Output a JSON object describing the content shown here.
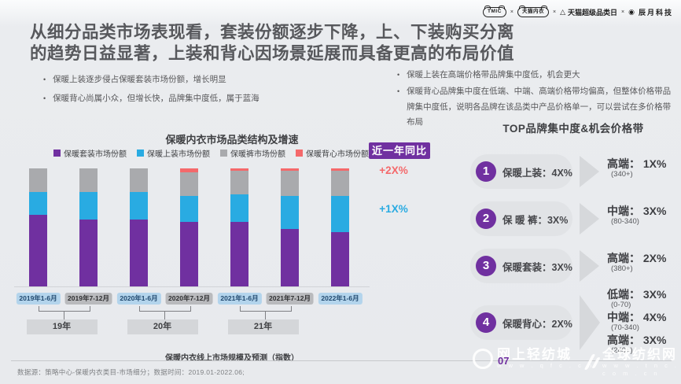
{
  "slide": {
    "title_line1": "从细分品类市场表现看，套装份额逐步下降，上、下装购买分离",
    "title_line2": "的趋势日益显著，上装和背心因场景延展而具备更高的布局价值"
  },
  "header_logos": {
    "items": [
      "TMIC",
      "天猫内衣",
      "天猫超级品类日",
      "辰月科技"
    ],
    "separator": "×",
    "triangle_glyph": "△",
    "circle_glyph": "◉"
  },
  "left_bullets": [
    "保暖上装逐步侵占保暖套装市场份额，增长明显",
    "保暖背心尚属小众，但增长快，品牌集中度低，属于蓝海"
  ],
  "right_bullets": [
    "保暖上装在高端价格带品牌集中度低，机会更大",
    "保暖背心品牌集中度在低端、中端、高端价格带均偏高，但整体价格带品牌集中度低，说明各品牌在该品类中产品价格单一，可以尝试在多价格带布局"
  ],
  "chart_data": {
    "type": "bar",
    "stacked": true,
    "title": "保暖内衣市场品类结构及增速",
    "categories": [
      "2019年1-6月",
      "2019年7-12月",
      "2020年1-6月",
      "2020年7-12月",
      "2021年1-6月",
      "2021年7-12月",
      "2022年1-6月"
    ],
    "series": [
      {
        "name": "保暖套装市场份额",
        "color": "#7030A0",
        "values": [
          61,
          57,
          57,
          55,
          55,
          49,
          46
        ]
      },
      {
        "name": "保暖上装市场份额",
        "color": "#29ABE2",
        "values": [
          19,
          23,
          23,
          22,
          23,
          28,
          31
        ]
      },
      {
        "name": "保暖裤市场份额",
        "color": "#A9AAAD",
        "values": [
          20,
          20,
          20,
          20,
          20,
          21,
          21
        ]
      },
      {
        "name": "保暖背心市场份额",
        "color": "#F4696B",
        "values": [
          0,
          0,
          0,
          3,
          2,
          2,
          2
        ]
      }
    ],
    "badge": "近一年同比",
    "annotations": [
      {
        "text": "+2X%",
        "color": "#F4696B"
      },
      {
        "text": "+1X%",
        "color": "#29ABE2"
      }
    ],
    "year_groups": [
      {
        "label": "19年",
        "from": 0,
        "to": 1
      },
      {
        "label": "20年",
        "from": 2,
        "to": 3
      },
      {
        "label": "21年",
        "from": 4,
        "to": 5
      }
    ],
    "caption": "保暖内衣线上市场规模及预测（指数）",
    "xlabel": "",
    "ylabel": "",
    "ylim": [
      0,
      100
    ],
    "grid": false,
    "legend_position": "top"
  },
  "panel": {
    "title": "TOP品牌集中度&机会价格带",
    "rows": [
      {
        "num": "1",
        "label": "保暖上装：",
        "value": "4X%",
        "bands": [
          {
            "tier": "高端：",
            "value": "1X%",
            "range": "(340+)"
          }
        ]
      },
      {
        "num": "2",
        "label": "保 暖 裤：",
        "value": "3X%",
        "bands": [
          {
            "tier": "中端：",
            "value": "3X%",
            "range": "(80-340)"
          }
        ]
      },
      {
        "num": "3",
        "label": "保暖套装：",
        "value": "3X%",
        "bands": [
          {
            "tier": "高端：",
            "value": "2X%",
            "range": "(380+)"
          }
        ]
      },
      {
        "num": "4",
        "label": "保暖背心：",
        "value": "2X%",
        "bands": [
          {
            "tier": "低端：",
            "value": "3X%",
            "range": "(0-70)"
          },
          {
            "tier": "中端：",
            "value": "4X%",
            "range": "(70-340)"
          },
          {
            "tier": "高端：",
            "value": "3X%",
            "range": "(240+)"
          }
        ]
      }
    ]
  },
  "footer": {
    "source": "数据源：策略中心-保暖内衣类目-市场细分；数据时间：2019.01-2022.06;",
    "page": "07"
  },
  "watermarks": {
    "left": {
      "name": "网上轻纺城",
      "url": "w w w . q f c . c n"
    },
    "right": {
      "name": "全球纺织网",
      "url": "w w w . t n c . c o m . c n"
    }
  },
  "colors": {
    "accent_purple": "#7030A0",
    "title_gray": "#57585c",
    "annotation_red": "#F4696B",
    "annotation_blue": "#29ABE2"
  }
}
